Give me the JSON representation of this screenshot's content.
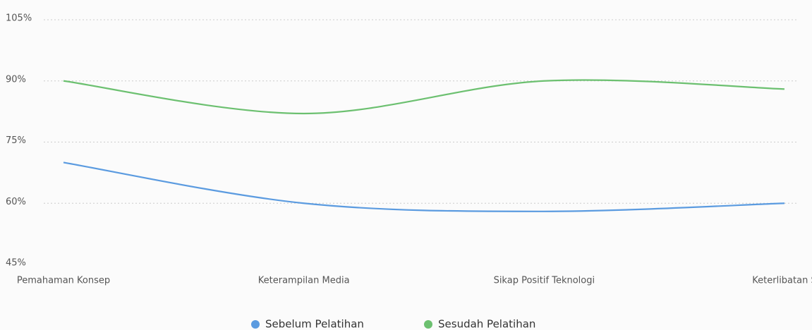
{
  "chart_data": {
    "type": "line",
    "categories": [
      "Pemahaman Konsep",
      "Keterampilan Media",
      "Sikap Positif Teknologi",
      "Keterlibatan S"
    ],
    "series": [
      {
        "name": "Sebelum Pelatihan",
        "color": "#5b9be0",
        "values": [
          70,
          60,
          58,
          60
        ]
      },
      {
        "name": "Sesudah Pelatihan",
        "color": "#6cc070",
        "values": [
          90,
          82,
          90,
          88
        ]
      }
    ],
    "ylim": [
      45,
      105
    ],
    "yticks": [
      {
        "value": 45,
        "label": "45%"
      },
      {
        "value": 60,
        "label": "60%"
      },
      {
        "value": 75,
        "label": "75%"
      },
      {
        "value": 90,
        "label": "90%"
      },
      {
        "value": 105,
        "label": "105%"
      }
    ],
    "grid": true
  }
}
